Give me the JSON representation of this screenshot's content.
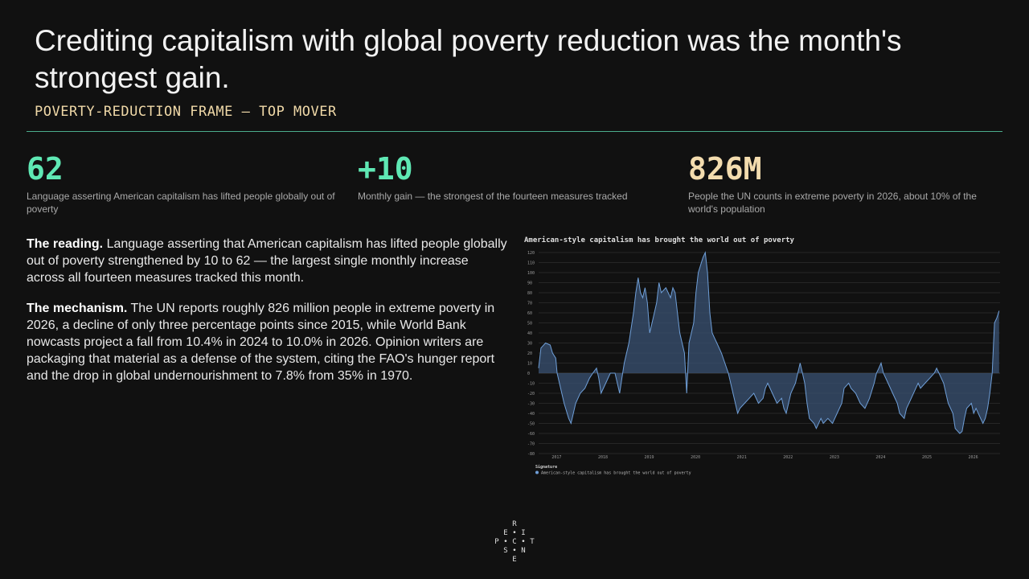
{
  "header": {
    "title": "Crediting capitalism with global poverty reduction was the month's strongest gain.",
    "subtitle": "POVERTY-REDUCTION FRAME — TOP MOVER"
  },
  "stats": [
    {
      "value": "62",
      "desc": "Language asserting American capitalism has lifted people globally out of poverty",
      "color": "#5fe8b4"
    },
    {
      "value": "+10",
      "desc": "Monthly gain — the strongest of the fourteen measures tracked",
      "color": "#5fe8b4"
    },
    {
      "value": "826M",
      "desc": "People the UN counts in extreme poverty in 2026, about 10% of the world's population",
      "color": "#f3dcae"
    }
  ],
  "body": {
    "p1_lead": "The reading.",
    "p1_text": " Language asserting that American capitalism has lifted people globally out of poverty strengthened by 10 to 62 — the largest single monthly increase across all fourteen measures tracked this month.",
    "p2_lead": "The mechanism.",
    "p2_text": " The UN reports roughly 826 million people in extreme poverty in 2026, a decline of only three percentage points since 2015, while World Bank nowcasts project a fall from 10.4% in 2024 to 10.0% in 2026. Opinion writers are packaging that material as a defense of the system, citing the FAO's hunger report and the drop in global undernourishment to 7.8% from 35% in 1970."
  },
  "logo": {
    "letters": [
      "R",
      "E",
      "I",
      "P",
      "C",
      "T",
      "S",
      "N",
      "E"
    ]
  },
  "chart_data": {
    "type": "area",
    "title": "American-style capitalism has brought the world out of poverty",
    "legend_title": "Signature",
    "series": [
      {
        "name": "American-style capitalism has brought the world out of poverty",
        "color": "#6f9fd8"
      }
    ],
    "y_ticks": [
      120,
      110,
      100,
      90,
      80,
      70,
      60,
      50,
      40,
      30,
      20,
      10,
      0,
      -10,
      -20,
      -30,
      -40,
      -50,
      -60,
      -70,
      -80
    ],
    "ylim": [
      -80,
      120
    ],
    "x_ticks": [
      "2017",
      "2018",
      "2019",
      "2020",
      "2021",
      "2022",
      "2023",
      "2024",
      "2025",
      "2026"
    ],
    "xlim": [
      2016.75,
      2026.72
    ],
    "grid": true,
    "points": [
      [
        2016.75,
        5
      ],
      [
        2016.8,
        25
      ],
      [
        2016.9,
        30
      ],
      [
        2017.0,
        28
      ],
      [
        2017.05,
        20
      ],
      [
        2017.12,
        15
      ],
      [
        2017.15,
        0
      ],
      [
        2017.2,
        -10
      ],
      [
        2017.3,
        -30
      ],
      [
        2017.4,
        -45
      ],
      [
        2017.45,
        -50
      ],
      [
        2017.55,
        -30
      ],
      [
        2017.65,
        -20
      ],
      [
        2017.75,
        -15
      ],
      [
        2017.85,
        -5
      ],
      [
        2017.92,
        0
      ],
      [
        2018.0,
        5
      ],
      [
        2018.05,
        -5
      ],
      [
        2018.1,
        -20
      ],
      [
        2018.2,
        -10
      ],
      [
        2018.3,
        0
      ],
      [
        2018.4,
        0
      ],
      [
        2018.5,
        -20
      ],
      [
        2018.55,
        -5
      ],
      [
        2018.6,
        10
      ],
      [
        2018.7,
        30
      ],
      [
        2018.8,
        60
      ],
      [
        2018.85,
        80
      ],
      [
        2018.9,
        95
      ],
      [
        2018.95,
        80
      ],
      [
        2019.0,
        75
      ],
      [
        2019.05,
        85
      ],
      [
        2019.1,
        70
      ],
      [
        2019.15,
        40
      ],
      [
        2019.2,
        50
      ],
      [
        2019.3,
        70
      ],
      [
        2019.35,
        90
      ],
      [
        2019.4,
        80
      ],
      [
        2019.5,
        85
      ],
      [
        2019.6,
        75
      ],
      [
        2019.65,
        85
      ],
      [
        2019.7,
        80
      ],
      [
        2019.75,
        60
      ],
      [
        2019.8,
        40
      ],
      [
        2019.9,
        20
      ],
      [
        2019.95,
        -20
      ],
      [
        2020.0,
        30
      ],
      [
        2020.1,
        50
      ],
      [
        2020.15,
        80
      ],
      [
        2020.2,
        100
      ],
      [
        2020.3,
        115
      ],
      [
        2020.35,
        120
      ],
      [
        2020.4,
        100
      ],
      [
        2020.45,
        60
      ],
      [
        2020.5,
        40
      ],
      [
        2020.55,
        35
      ],
      [
        2020.6,
        30
      ],
      [
        2020.7,
        20
      ],
      [
        2020.85,
        0
      ],
      [
        2020.95,
        -20
      ],
      [
        2021.0,
        -30
      ],
      [
        2021.05,
        -40
      ],
      [
        2021.1,
        -35
      ],
      [
        2021.2,
        -30
      ],
      [
        2021.3,
        -25
      ],
      [
        2021.4,
        -20
      ],
      [
        2021.5,
        -30
      ],
      [
        2021.6,
        -25
      ],
      [
        2021.65,
        -15
      ],
      [
        2021.7,
        -10
      ],
      [
        2021.8,
        -20
      ],
      [
        2021.9,
        -30
      ],
      [
        2022.0,
        -25
      ],
      [
        2022.05,
        -35
      ],
      [
        2022.1,
        -40
      ],
      [
        2022.15,
        -30
      ],
      [
        2022.2,
        -20
      ],
      [
        2022.3,
        -10
      ],
      [
        2022.35,
        0
      ],
      [
        2022.4,
        10
      ],
      [
        2022.45,
        0
      ],
      [
        2022.5,
        -10
      ],
      [
        2022.55,
        -30
      ],
      [
        2022.6,
        -45
      ],
      [
        2022.7,
        -50
      ],
      [
        2022.75,
        -55
      ],
      [
        2022.85,
        -45
      ],
      [
        2022.9,
        -50
      ],
      [
        2023.0,
        -45
      ],
      [
        2023.1,
        -50
      ],
      [
        2023.2,
        -40
      ],
      [
        2023.3,
        -30
      ],
      [
        2023.35,
        -15
      ],
      [
        2023.45,
        -10
      ],
      [
        2023.5,
        -15
      ],
      [
        2023.6,
        -20
      ],
      [
        2023.7,
        -30
      ],
      [
        2023.8,
        -35
      ],
      [
        2023.9,
        -25
      ],
      [
        2024.0,
        -10
      ],
      [
        2024.05,
        0
      ],
      [
        2024.1,
        5
      ],
      [
        2024.15,
        10
      ],
      [
        2024.2,
        0
      ],
      [
        2024.3,
        -10
      ],
      [
        2024.4,
        -20
      ],
      [
        2024.5,
        -30
      ],
      [
        2024.55,
        -40
      ],
      [
        2024.65,
        -45
      ],
      [
        2024.7,
        -35
      ],
      [
        2024.8,
        -25
      ],
      [
        2024.9,
        -15
      ],
      [
        2024.95,
        -10
      ],
      [
        2025.0,
        -15
      ],
      [
        2025.1,
        -10
      ],
      [
        2025.2,
        -5
      ],
      [
        2025.3,
        0
      ],
      [
        2025.35,
        5
      ],
      [
        2025.4,
        0
      ],
      [
        2025.5,
        -10
      ],
      [
        2025.55,
        -20
      ],
      [
        2025.6,
        -30
      ],
      [
        2025.7,
        -40
      ],
      [
        2025.75,
        -55
      ],
      [
        2025.85,
        -60
      ],
      [
        2025.9,
        -58
      ],
      [
        2025.95,
        -45
      ],
      [
        2026.0,
        -35
      ],
      [
        2026.1,
        -30
      ],
      [
        2026.15,
        -40
      ],
      [
        2026.2,
        -35
      ],
      [
        2026.3,
        -45
      ],
      [
        2026.35,
        -50
      ],
      [
        2026.4,
        -45
      ],
      [
        2026.45,
        -35
      ],
      [
        2026.5,
        -20
      ],
      [
        2026.55,
        0
      ],
      [
        2026.58,
        30
      ],
      [
        2026.6,
        50
      ],
      [
        2026.65,
        55
      ],
      [
        2026.7,
        62
      ]
    ]
  }
}
